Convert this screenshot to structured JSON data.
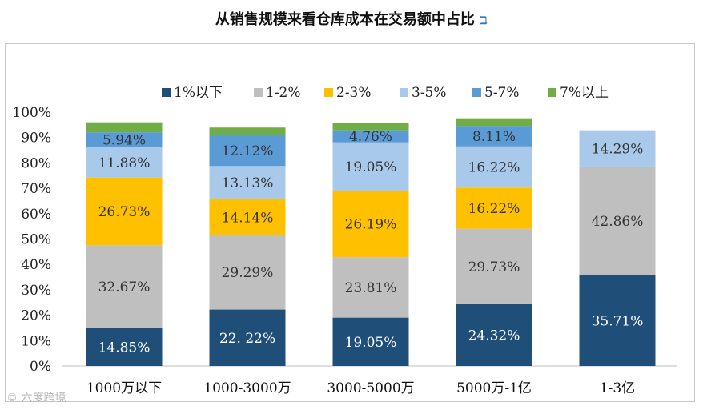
{
  "chart_data": {
    "type": "bar",
    "stacked": true,
    "title": "从销售规模来看仓库成本在交易额中占比",
    "title_mark": "ℶ",
    "categories": [
      "1000万以下",
      "1000-3000万",
      "3000-5000万",
      "5000万-1亿",
      "1-3亿"
    ],
    "series": [
      {
        "name": "1%以下",
        "color": "#1f4e79",
        "label_color": "#ffffff",
        "values": [
          14.85,
          22.22,
          19.05,
          24.32,
          35.71
        ],
        "labels": [
          "14.85%",
          "22. 22%",
          "19.05%",
          "24.32%",
          "35.71%"
        ]
      },
      {
        "name": "1-2%",
        "color": "#bfbfbf",
        "label_color": "#333333",
        "values": [
          32.67,
          29.29,
          23.81,
          29.73,
          42.86
        ],
        "labels": [
          "32.67%",
          "29.29%",
          "23.81%",
          "29.73%",
          "42.86%"
        ]
      },
      {
        "name": "2-3%",
        "color": "#ffc000",
        "label_color": "#333333",
        "values": [
          26.73,
          14.14,
          26.19,
          16.22,
          0
        ],
        "labels": [
          "26.73%",
          "14.14%",
          "26.19%",
          "16.22%",
          ""
        ]
      },
      {
        "name": "3-5%",
        "color": "#a9c9ea",
        "label_color": "#333333",
        "values": [
          11.88,
          13.13,
          19.05,
          16.22,
          14.29
        ],
        "labels": [
          "11.88%",
          "13.13%",
          "19.05%",
          "16.22%",
          "14.29%"
        ]
      },
      {
        "name": "5-7%",
        "color": "#5b9bd5",
        "label_color": "#333333",
        "values": [
          5.94,
          12.12,
          4.76,
          8.11,
          0
        ],
        "labels": [
          "5.94%",
          "12.12%",
          "4.76%",
          "8.11%",
          ""
        ]
      },
      {
        "name": "7%以上",
        "color": "#70ad47",
        "label_color": "#333333",
        "values": [
          3.93,
          3.03,
          2.98,
          2.97,
          0
        ],
        "labels": [
          "",
          "",
          "",
          "",
          ""
        ]
      }
    ],
    "ylim": [
      0,
      100
    ],
    "yticks": [
      "0%",
      "10%",
      "20%",
      "30%",
      "40%",
      "50%",
      "60%",
      "70%",
      "80%",
      "90%",
      "100%"
    ],
    "legend_position": "top",
    "grid": false
  },
  "watermark": "© 六度跨境"
}
